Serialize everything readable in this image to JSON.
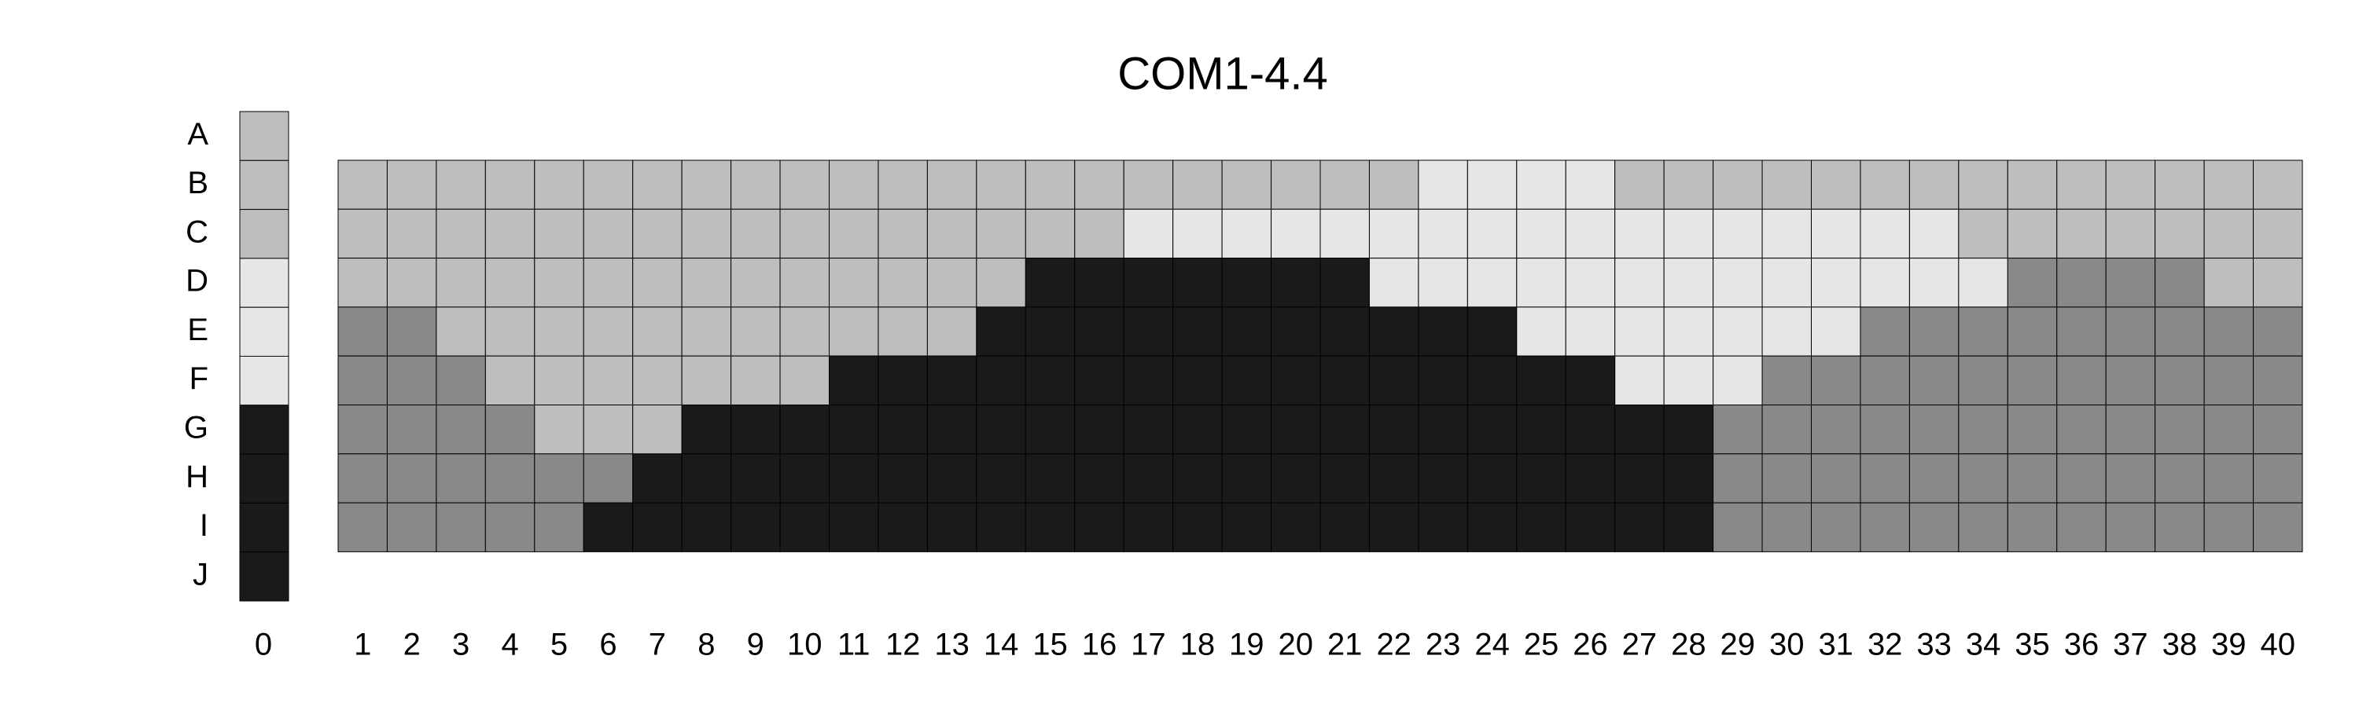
{
  "chart_data": {
    "type": "heatmap",
    "title": "COM1-4.4",
    "rows": [
      "A",
      "B",
      "C",
      "D",
      "E",
      "F",
      "G",
      "H",
      "I",
      "J"
    ],
    "reference_column": {
      "label": "0",
      "values": [
        1,
        1,
        1,
        0,
        0,
        0,
        3,
        3,
        3,
        3
      ]
    },
    "columns": [
      "1",
      "2",
      "3",
      "4",
      "5",
      "6",
      "7",
      "8",
      "9",
      "10",
      "11",
      "12",
      "13",
      "14",
      "15",
      "16",
      "17",
      "18",
      "19",
      "20",
      "21",
      "22",
      "23",
      "24",
      "25",
      "26",
      "27",
      "28",
      "29",
      "30",
      "31",
      "32",
      "33",
      "34",
      "35",
      "36",
      "37",
      "38",
      "39",
      "40"
    ],
    "grid_rows": [
      "B",
      "C",
      "D",
      "E",
      "F",
      "G",
      "H",
      "I"
    ],
    "grid": [
      [
        1,
        1,
        1,
        1,
        1,
        1,
        1,
        1,
        1,
        1,
        1,
        1,
        1,
        1,
        1,
        1,
        1,
        1,
        1,
        1,
        1,
        1,
        0,
        0,
        0,
        0,
        1,
        1,
        1,
        1,
        1,
        1,
        1,
        1,
        1,
        1,
        1,
        1,
        1,
        1
      ],
      [
        1,
        1,
        1,
        1,
        1,
        1,
        1,
        1,
        1,
        1,
        1,
        1,
        1,
        1,
        1,
        1,
        0,
        0,
        0,
        0,
        0,
        0,
        0,
        0,
        0,
        0,
        0,
        0,
        0,
        0,
        0,
        0,
        0,
        1,
        1,
        1,
        1,
        1,
        1,
        1
      ],
      [
        1,
        1,
        1,
        1,
        1,
        1,
        1,
        1,
        1,
        1,
        1,
        1,
        1,
        1,
        3,
        3,
        3,
        3,
        3,
        3,
        3,
        0,
        0,
        0,
        0,
        0,
        0,
        0,
        0,
        0,
        0,
        0,
        0,
        0,
        2,
        2,
        2,
        2,
        1,
        1
      ],
      [
        2,
        2,
        1,
        1,
        1,
        1,
        1,
        1,
        1,
        1,
        1,
        1,
        1,
        3,
        3,
        3,
        3,
        3,
        3,
        3,
        3,
        3,
        3,
        3,
        0,
        0,
        0,
        0,
        0,
        0,
        0,
        2,
        2,
        2,
        2,
        2,
        2,
        2,
        2,
        2
      ],
      [
        2,
        2,
        2,
        1,
        1,
        1,
        1,
        1,
        1,
        1,
        3,
        3,
        3,
        3,
        3,
        3,
        3,
        3,
        3,
        3,
        3,
        3,
        3,
        3,
        3,
        3,
        0,
        0,
        0,
        2,
        2,
        2,
        2,
        2,
        2,
        2,
        2,
        2,
        2,
        2
      ],
      [
        2,
        2,
        2,
        2,
        1,
        1,
        1,
        3,
        3,
        3,
        3,
        3,
        3,
        3,
        3,
        3,
        3,
        3,
        3,
        3,
        3,
        3,
        3,
        3,
        3,
        3,
        3,
        3,
        2,
        2,
        2,
        2,
        2,
        2,
        2,
        2,
        2,
        2,
        2,
        2
      ],
      [
        2,
        2,
        2,
        2,
        2,
        2,
        3,
        3,
        3,
        3,
        3,
        3,
        3,
        3,
        3,
        3,
        3,
        3,
        3,
        3,
        3,
        3,
        3,
        3,
        3,
        3,
        3,
        3,
        2,
        2,
        2,
        2,
        2,
        2,
        2,
        2,
        2,
        2,
        2,
        2
      ],
      [
        2,
        2,
        2,
        2,
        2,
        3,
        3,
        3,
        3,
        3,
        3,
        3,
        3,
        3,
        3,
        3,
        3,
        3,
        3,
        3,
        3,
        3,
        3,
        3,
        3,
        3,
        3,
        3,
        2,
        2,
        2,
        2,
        2,
        2,
        2,
        2,
        2,
        2,
        2,
        2
      ]
    ],
    "palette": [
      "#e6e6e6",
      "#bebebe",
      "#898989",
      "#1a1a1a"
    ],
    "grid_lines": true,
    "legend": "none"
  }
}
